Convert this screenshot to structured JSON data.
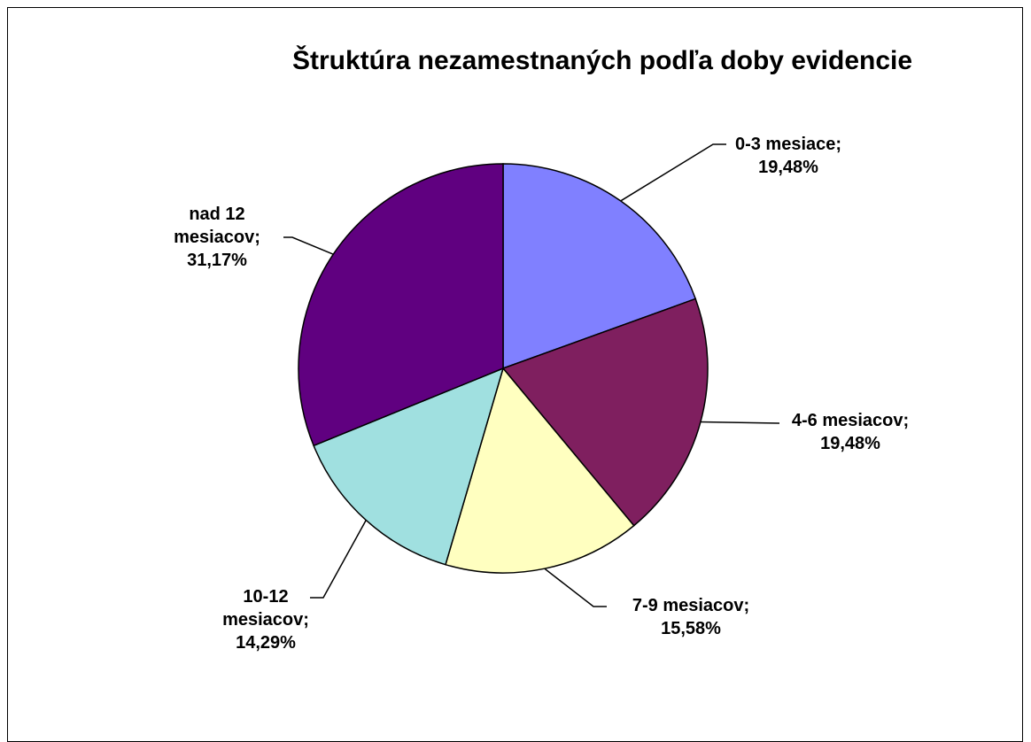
{
  "chart_data": {
    "type": "pie",
    "title": "Štruktúra nezamestnaných podľa doby evidencie",
    "values": [
      19.48,
      19.48,
      15.58,
      14.29,
      31.17
    ],
    "value_labels": [
      "0-3 mesiace;\n19,48%",
      "4-6 mesiacov;\n19,48%",
      "7-9 mesiacov;\n15,58%",
      "10-12\nmesiacov;\n14,29%",
      "nad 12\nmesiacov;\n31,17%"
    ],
    "colors": [
      "#8080ff",
      "#7f1f5f",
      "#ffffc0",
      "#a0e0e0",
      "#600080"
    ]
  }
}
